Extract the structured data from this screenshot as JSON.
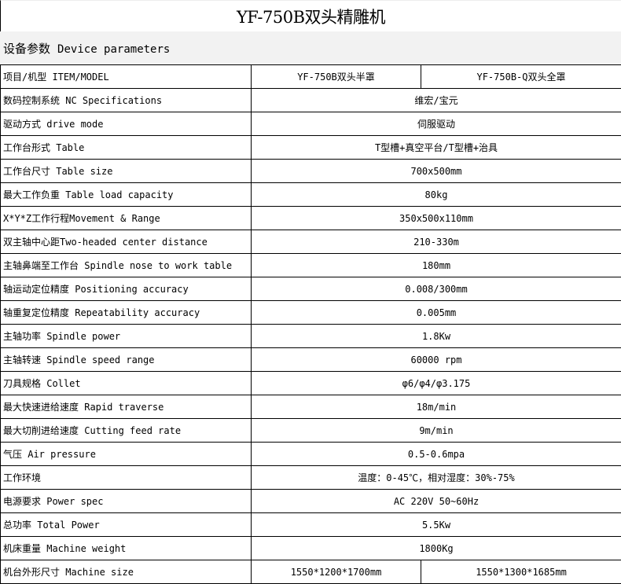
{
  "title": "YF-750B双头精雕机",
  "section": {
    "cn": "设备参数",
    "en": "Device parameters"
  },
  "header": {
    "label": "项目/机型 ITEM/MODEL",
    "models": [
      "YF-750B双头半罩",
      "YF-750B-Q双头全罩"
    ]
  },
  "rows": [
    {
      "label": "数码控制系统 NC Specifications",
      "value": "维宏/宝元"
    },
    {
      "label": "驱动方式  drive mode",
      "value": "伺服驱动"
    },
    {
      "label": "工作台形式 Table",
      "value": "T型槽+真空平台/T型槽+治具"
    },
    {
      "label": "工作台尺寸 Table size",
      "value": "700x500mm"
    },
    {
      "label": "最大工作负重 Table load capacity",
      "value": "80kg"
    },
    {
      "label": "X*Y*Z工作行程Movement & Range",
      "value": "350x500x110mm"
    },
    {
      "label": "双主轴中心距Two-headed center distance",
      "value": "210-330m"
    },
    {
      "label": "主轴鼻端至工作台 Spindle nose to work table",
      "value": "180mm"
    },
    {
      "label": "轴运动定位精度 Positioning accuracy",
      "value": "0.008/300mm"
    },
    {
      "label": "轴重复定位精度 Repeatability accuracy",
      "value": "0.005mm"
    },
    {
      "label": "主轴功率 Spindle power",
      "value": "1.8Kw"
    },
    {
      "label": "主轴转速 Spindle speed range",
      "value": "60000 rpm"
    },
    {
      "label": "刀具规格 Collet",
      "value": "φ6/φ4/φ3.175"
    },
    {
      "label": "最大快速进给速度 Rapid traverse",
      "value": "18m/min"
    },
    {
      "label": "最大切削进给速度 Cutting feed rate",
      "value": "9m/min"
    },
    {
      "label": "气压 Air pressure",
      "value": "0.5-0.6mpa"
    },
    {
      "label": "工作环境",
      "value": "温度：0-45℃，相对湿度：30%-75%"
    },
    {
      "label": "电源要求 Power spec",
      "value": "AC  220V  50~60Hz"
    },
    {
      "label": "总功率 Total Power",
      "value": "5.5Kw"
    },
    {
      "label": "机床重量 Machine weight",
      "value": "1800Kg"
    }
  ],
  "size": {
    "label": "机台外形尺寸 Machine size",
    "values": [
      "1550*1200*1700mm",
      "1550*1300*1685mm"
    ]
  }
}
